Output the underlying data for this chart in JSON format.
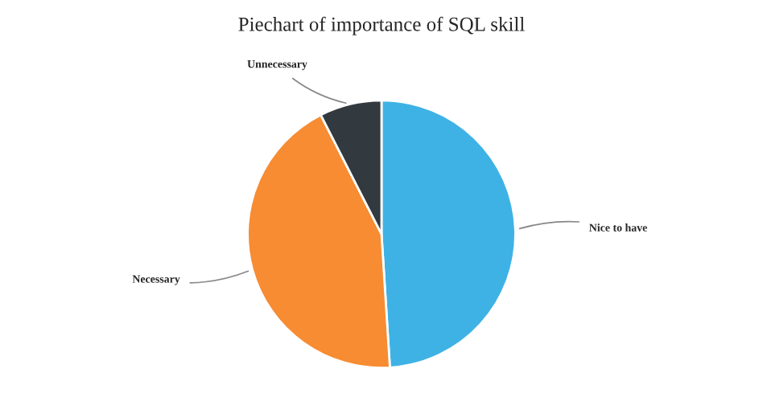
{
  "chart_data": {
    "type": "pie",
    "title": "Piechart of importance of SQL skill",
    "categories": [
      "Nice to have",
      "Necessary",
      "Unnecessary"
    ],
    "values": [
      49,
      43.5,
      7.5
    ],
    "colors": [
      "#3fb2e5",
      "#f78c33",
      "#333a3f"
    ]
  }
}
